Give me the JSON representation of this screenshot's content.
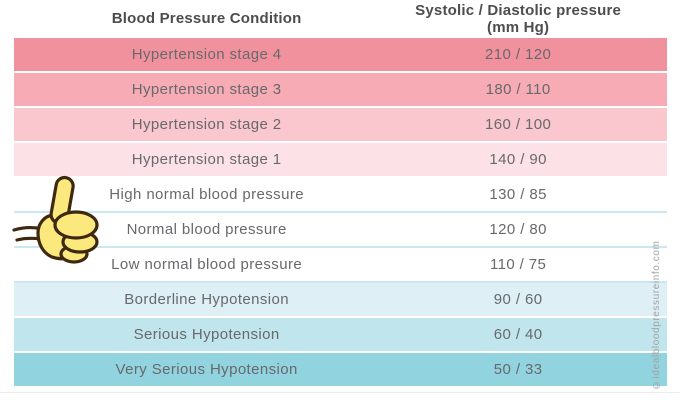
{
  "title_row": {
    "condition": "Blood Pressure Condition",
    "pressure": "Systolic / Diastolic pressure (mm Hg)"
  },
  "table": {
    "rows": [
      {
        "condition": "Hypertension stage 4",
        "value": "210 / 120",
        "bg": "#f2919e",
        "gap": "#ffffff"
      },
      {
        "condition": "Hypertension stage 3",
        "value": "180 / 110",
        "bg": "#f7abb4",
        "gap": "#ffffff"
      },
      {
        "condition": "Hypertension stage 2",
        "value": "160 / 100",
        "bg": "#f9c7cd",
        "gap": "#ffffff"
      },
      {
        "condition": "Hypertension stage 1",
        "value": "140 / 90",
        "bg": "#fce2e6",
        "gap": "#ffffff"
      },
      {
        "condition": "High normal blood pressure",
        "value": "130 / 85",
        "bg": "#ffffff",
        "gap": "#cbe7f3"
      },
      {
        "condition": "Normal blood pressure",
        "value": "120 / 80",
        "bg": "#ffffff",
        "gap": "#cbe7f3"
      },
      {
        "condition": "Low normal blood pressure",
        "value": "110 / 75",
        "bg": "#ffffff",
        "gap": "#cbe7f3"
      },
      {
        "condition": "Borderline Hypotension",
        "value": "90 / 60",
        "bg": "#def0f5",
        "gap": "#ffffff"
      },
      {
        "condition": "Serious Hypotension",
        "value": "60 / 40",
        "bg": "#c1e5ed",
        "gap": "#ffffff"
      },
      {
        "condition": "Very Serious Hypotension",
        "value": "50 / 33",
        "bg": "#92d3e0",
        "gap": "#ffffff"
      }
    ]
  },
  "watermark": "©idealbloodpressureinfo.com",
  "icons": {
    "thumbs_up": "thumbs-up-icon"
  },
  "colors": {
    "header_text": "#4d4d4f",
    "row_text": "#68696c",
    "divider": "#cbe7f3",
    "hypertension_strong": "#f2919e",
    "hypotension_strong": "#92d3e0",
    "thumb_fill": "#fbe97e",
    "thumb_outline": "#3f2810",
    "watermark_text": "#a2a2a2"
  },
  "chart_data": {
    "type": "table",
    "title": "Blood pressure conditions chart",
    "columns": [
      "Blood Pressure Condition",
      "Systolic / Diastolic pressure (mm Hg)"
    ],
    "rows": [
      [
        "Hypertension stage 4",
        "210 / 120"
      ],
      [
        "Hypertension stage 3",
        "180 / 110"
      ],
      [
        "Hypertension stage 2",
        "160 / 100"
      ],
      [
        "Hypertension stage 1",
        "140 / 90"
      ],
      [
        "High normal blood pressure",
        "130 / 85"
      ],
      [
        "Normal blood pressure",
        "120 / 80"
      ],
      [
        "Low normal blood pressure",
        "110 / 75"
      ],
      [
        "Borderline Hypotension",
        "90 / 60"
      ],
      [
        "Serious Hypotension",
        "60 / 40"
      ],
      [
        "Very Serious Hypotension",
        "50 / 33"
      ]
    ],
    "systolic": [
      210,
      180,
      160,
      140,
      130,
      120,
      110,
      90,
      60,
      50
    ],
    "diastolic": [
      120,
      110,
      100,
      90,
      85,
      80,
      75,
      60,
      40,
      33
    ],
    "units": "mm Hg",
    "row_groups": [
      "hypertension",
      "hypertension",
      "hypertension",
      "hypertension",
      "normal",
      "normal",
      "normal",
      "hypotension",
      "hypotension",
      "hypotension"
    ],
    "legend_position": "none",
    "grid": false
  }
}
